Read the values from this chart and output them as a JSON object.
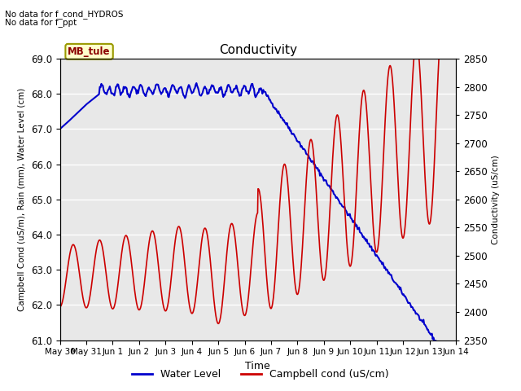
{
  "title": "Conductivity",
  "xlabel": "Time",
  "ylabel_left": "Campbell Cond (uS/m), Rain (mm), Water Level (cm)",
  "ylabel_right": "Conductivity (uS/cm)",
  "annotation_lines": [
    "No data for f_cond_HYDROS",
    "No data for f_ppt"
  ],
  "mb_tule_label": "MB_tule",
  "ylim_left": [
    61.0,
    69.0
  ],
  "ylim_right": [
    2350,
    2850
  ],
  "background_color": "#e8e8e8",
  "figure_bg": "#ffffff",
  "water_level_color": "#0000cc",
  "campbell_color": "#cc0000",
  "legend_items": [
    "Water Level",
    "Campbell cond (uS/cm)"
  ],
  "xtick_labels": [
    "May 30",
    "May 31",
    "Jun 1",
    "Jun 2",
    "Jun 3",
    "Jun 4",
    "Jun 5",
    "Jun 6",
    "Jun 7",
    "Jun 8",
    "Jun 9",
    "Jun 10",
    "Jun 11",
    "Jun 12",
    "Jun 13",
    "Jun 14"
  ],
  "xtick_positions": [
    0,
    1,
    2,
    3,
    4,
    5,
    6,
    7,
    8,
    9,
    10,
    11,
    12,
    13,
    14,
    15
  ]
}
